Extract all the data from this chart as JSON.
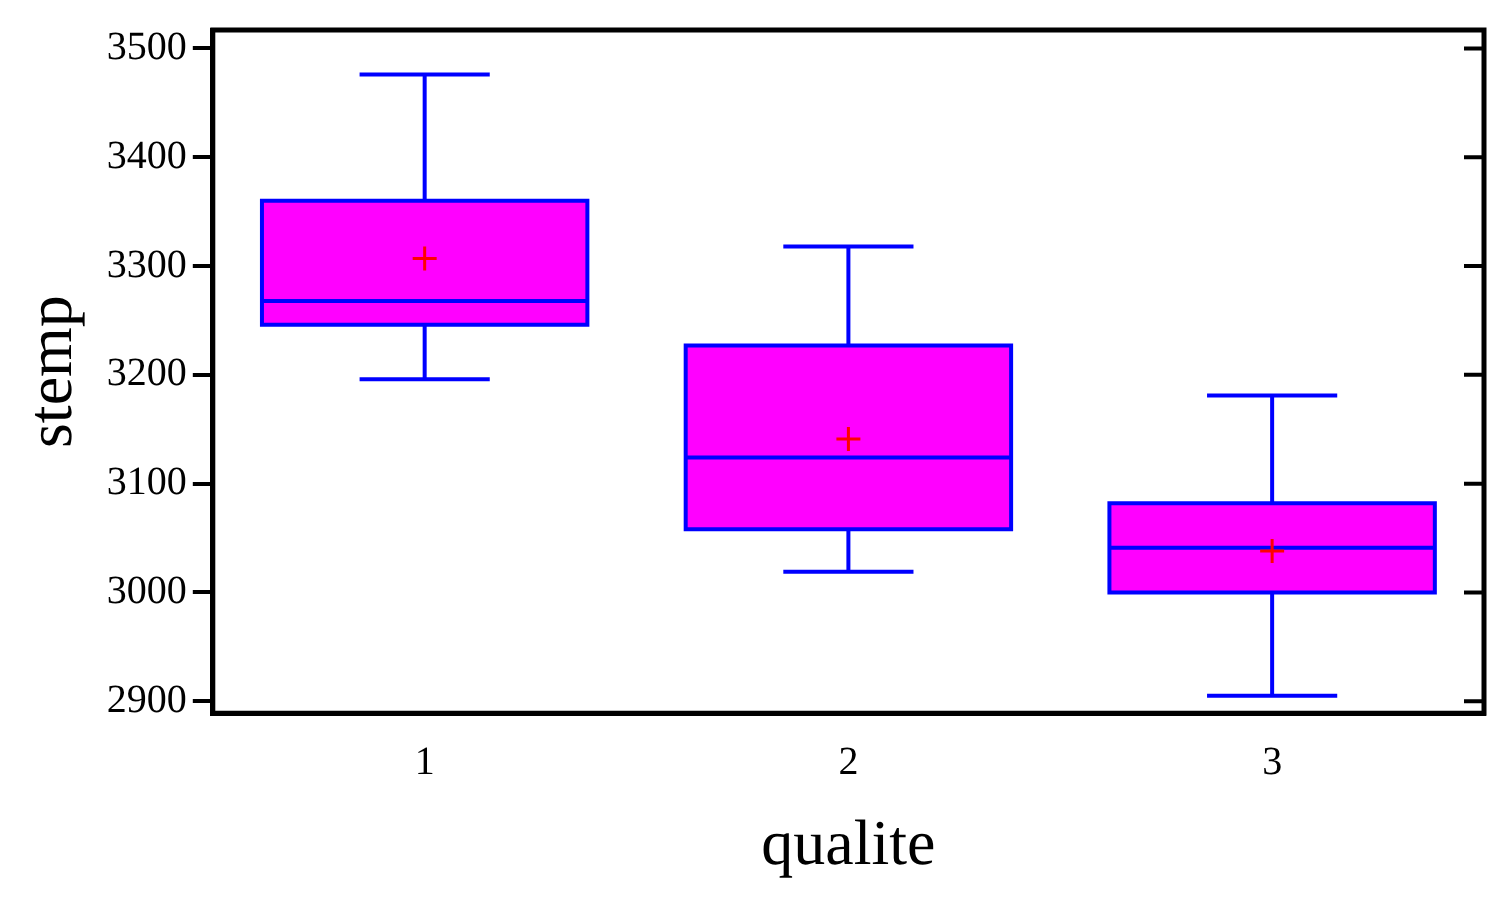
{
  "chart_data": {
    "type": "box",
    "xlabel": "qualite",
    "ylabel": "stemp",
    "categories": [
      "1",
      "2",
      "3"
    ],
    "color": "#ff00ff",
    "boxes": [
      {
        "low": 3196,
        "q1": 3246,
        "median": 3268,
        "q3": 3360,
        "high": 3476,
        "mean": 3307
      },
      {
        "low": 3019,
        "q1": 3058,
        "median": 3124,
        "q3": 3227,
        "high": 3318,
        "mean": 3141
      },
      {
        "low": 2905,
        "q1": 3000,
        "median": 3041,
        "q3": 3082,
        "high": 3181,
        "mean": 3038
      }
    ],
    "ylim": [
      2889,
      3517
    ],
    "yticks": [
      2900,
      3000,
      3100,
      3200,
      3300,
      3400,
      3500
    ],
    "grid": false,
    "legend": false
  }
}
